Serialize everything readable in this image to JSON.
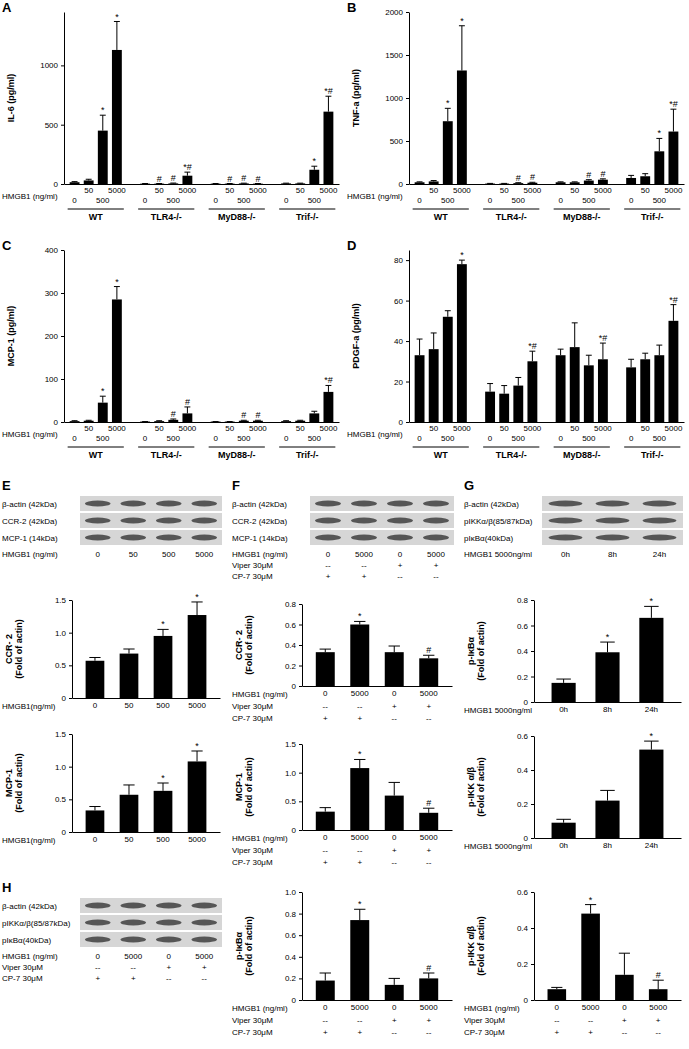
{
  "chart_data": [
    {
      "type": "bar",
      "panel": "A",
      "y_label": [
        "IL-6 (pg/ml)"
      ],
      "x_label": "HMGB1 (ng/ml)",
      "categories": [
        "0",
        "50",
        "500",
        "5000",
        "0",
        "50",
        "500",
        "5000",
        "0",
        "50",
        "500",
        "5000",
        "0",
        "50",
        "500",
        "5000"
      ],
      "groups": [
        "WT",
        "TLR4-/-",
        "MyD88-/-",
        "Trif-/-"
      ],
      "values": [
        15,
        30,
        450,
        1130,
        3,
        3,
        5,
        70,
        3,
        3,
        5,
        3,
        5,
        5,
        120,
        610
      ],
      "errors": [
        5,
        10,
        130,
        240,
        1,
        1,
        3,
        30,
        1,
        1,
        2,
        1,
        2,
        2,
        30,
        130
      ],
      "significance": [
        null,
        null,
        "*",
        "*",
        null,
        "#",
        "#",
        "*#",
        null,
        "#",
        "#",
        "#",
        null,
        null,
        "*",
        "*#"
      ],
      "color": "#000000",
      "ylim": [
        0,
        1450
      ],
      "yticks": [
        0,
        500,
        1000
      ]
    },
    {
      "type": "bar",
      "panel": "B",
      "y_label": [
        "TNF-a (pg/ml)"
      ],
      "x_label": "HMGB1 (ng/ml)",
      "categories": [
        "0",
        "50",
        "500",
        "5000",
        "0",
        "50",
        "500",
        "5000",
        "0",
        "50",
        "500",
        "5000",
        "0",
        "50",
        "500",
        "5000"
      ],
      "groups": [
        "WT",
        "TLR4-/-",
        "MyD88-/-",
        "Trif-/-"
      ],
      "values": [
        20,
        30,
        730,
        1320,
        5,
        5,
        10,
        15,
        20,
        20,
        40,
        50,
        70,
        90,
        380,
        610
      ],
      "errors": [
        5,
        10,
        150,
        520,
        2,
        2,
        5,
        5,
        5,
        5,
        10,
        10,
        30,
        30,
        150,
        260
      ],
      "significance": [
        null,
        null,
        "*",
        "*",
        null,
        null,
        "#",
        "#",
        null,
        null,
        "#",
        "#",
        null,
        null,
        "*",
        "*#"
      ],
      "color": "#000000",
      "ylim": [
        0,
        2000
      ],
      "yticks": [
        0,
        500,
        1000,
        1500,
        2000
      ]
    },
    {
      "type": "bar",
      "panel": "C",
      "y_label": [
        "MCP-1 (pg/ml)"
      ],
      "x_label": "HMGB1 (ng/ml)",
      "categories": [
        "0",
        "50",
        "500",
        "5000",
        "0",
        "50",
        "500",
        "5000",
        "0",
        "50",
        "500",
        "5000",
        "0",
        "50",
        "500",
        "5000"
      ],
      "groups": [
        "WT",
        "TLR4-/-",
        "MyD88-/-",
        "Trif-/-"
      ],
      "values": [
        2,
        3,
        45,
        285,
        1,
        2,
        5,
        20,
        1,
        1,
        3,
        3,
        2,
        3,
        20,
        70
      ],
      "errors": [
        1,
        1,
        15,
        30,
        0,
        1,
        2,
        15,
        0,
        0,
        1,
        1,
        1,
        1,
        5,
        15
      ],
      "significance": [
        null,
        null,
        "*",
        "*",
        null,
        null,
        "#",
        "#",
        null,
        null,
        "#",
        "#",
        null,
        null,
        null,
        "*#"
      ],
      "color": "#000000",
      "ylim": [
        0,
        400
      ],
      "yticks": [
        0,
        100,
        200,
        300,
        400
      ]
    },
    {
      "type": "bar",
      "panel": "D",
      "y_label": [
        "PDGF-a (pg/ml)"
      ],
      "x_label": "HMGB1 (ng/ml)",
      "categories": [
        "0",
        "50",
        "500",
        "5000",
        "0",
        "50",
        "500",
        "5000",
        "0",
        "50",
        "500",
        "5000",
        "0",
        "50",
        "500",
        "5000"
      ],
      "groups": [
        "WT",
        "TLR4-/-",
        "MyD88-/-",
        "Trif-/-"
      ],
      "values": [
        33,
        36,
        52,
        78,
        15,
        14,
        18,
        30,
        33,
        37,
        28,
        31,
        27,
        31,
        33,
        50
      ],
      "errors": [
        8,
        8,
        3,
        2,
        4,
        4,
        4,
        5,
        3,
        12,
        5,
        8,
        4,
        3,
        5,
        8
      ],
      "significance": [
        null,
        null,
        null,
        "*",
        null,
        null,
        null,
        "*#",
        null,
        null,
        null,
        "*#",
        null,
        null,
        null,
        "*#"
      ],
      "color": "#000000",
      "ylim": [
        0,
        85
      ],
      "yticks": [
        0,
        20,
        40,
        60,
        80
      ]
    },
    {
      "type": "blot",
      "panel": "E",
      "rows": [
        "β-actin (42kDa)",
        "CCR-2 (42kDa)",
        "MCP-1 (14kDa)"
      ],
      "lane_rows": [
        {
          "label": "HMGB1 (ng/ml)",
          "values": [
            "0",
            "50",
            "500",
            "5000"
          ]
        }
      ]
    },
    {
      "type": "bar",
      "y_label": [
        "CCR- 2",
        "(Fold of actin)"
      ],
      "x_label": "HMGB1(ng/ml)",
      "categories": [
        "0",
        "50",
        "500",
        "5000"
      ],
      "values": [
        0.57,
        0.68,
        0.95,
        1.27
      ],
      "errors": [
        0.05,
        0.07,
        0.1,
        0.2
      ],
      "significance": [
        null,
        null,
        "*",
        "*"
      ],
      "color": "#000000",
      "ylim": [
        0,
        1.5
      ],
      "yticks": [
        0,
        0.5,
        {
          "value": 1,
          "label": "1.0"
        },
        1.5
      ]
    },
    {
      "type": "bar",
      "y_label": [
        "MCP-1",
        "(Fold of actin)"
      ],
      "x_label": "HMGB1(ng/ml)",
      "categories": [
        "0",
        "50",
        "500",
        "5000"
      ],
      "values": [
        0.33,
        0.57,
        0.63,
        1.08
      ],
      "errors": [
        0.06,
        0.15,
        0.12,
        0.16
      ],
      "significance": [
        null,
        null,
        "*",
        "*"
      ],
      "color": "#000000",
      "ylim": [
        0,
        1.5
      ],
      "yticks": [
        0,
        0.5,
        {
          "value": 1,
          "label": "1.0"
        },
        1.5
      ]
    },
    {
      "type": "blot",
      "panel": "F",
      "rows": [
        "β-actin (42kDa)",
        "CCR-2 (42kDa)",
        "MCP-1 (14kDa)"
      ],
      "lane_rows": [
        {
          "label": "HMGB1 (ng/ml)",
          "values": [
            "0",
            "5000",
            "0",
            "5000"
          ]
        },
        {
          "label": "Viper 30μM",
          "values": [
            "--",
            "--",
            "+",
            "+"
          ]
        },
        {
          "label": "CP-7 30μM",
          "values": [
            "+",
            "+",
            "--",
            "--"
          ]
        }
      ]
    },
    {
      "type": "bar",
      "y_label": [
        "CCR- 2",
        "(Fold of actin)"
      ],
      "x_label": "HMGB1 (ng/ml)",
      "categories": [
        "0",
        "5000",
        "0",
        "5000"
      ],
      "extra_rows": [
        {
          "label": "Viper 30μM",
          "values": [
            "--",
            "--",
            "+",
            "+"
          ]
        },
        {
          "label": "CP-7 30μM",
          "values": [
            "+",
            "+",
            "--",
            "--"
          ]
        }
      ],
      "values": [
        0.33,
        0.6,
        0.33,
        0.27
      ],
      "errors": [
        0.03,
        0.03,
        0.06,
        0.03
      ],
      "significance": [
        null,
        "*",
        null,
        "#"
      ],
      "color": "#000000",
      "ylim": [
        0,
        0.8
      ],
      "yticks": [
        0,
        0.2,
        0.4,
        0.6,
        0.8
      ]
    },
    {
      "type": "bar",
      "y_label": [
        "MCP-1",
        "(Fold of actin)"
      ],
      "x_label": "HMGB1 (ng/ml)",
      "categories": [
        "0",
        "5000",
        "0",
        "5000"
      ],
      "extra_rows": [
        {
          "label": "Viper 30μM",
          "values": [
            "--",
            "--",
            "+",
            "+"
          ]
        },
        {
          "label": "CP-7 30μM",
          "values": [
            "+",
            "+",
            "--",
            "--"
          ]
        }
      ],
      "values": [
        0.32,
        1.08,
        0.6,
        0.3
      ],
      "errors": [
        0.07,
        0.15,
        0.23,
        0.08
      ],
      "significance": [
        null,
        "*",
        null,
        "#"
      ],
      "color": "#000000",
      "ylim": [
        0,
        1.5
      ],
      "yticks": [
        0,
        0.5,
        {
          "value": 1,
          "label": "1.0"
        },
        1.5
      ]
    },
    {
      "type": "blot",
      "panel": "G",
      "rows": [
        "β-actin (42kDa)",
        "pIKKα/β(85/87kDa)",
        "pIκBα(40kDa)"
      ],
      "lane_rows": [
        {
          "label": "HMGB1 5000ng/ml",
          "values": [
            "0h",
            "8h",
            "24h"
          ]
        }
      ]
    },
    {
      "type": "bar",
      "y_label": [
        "p-IκBα",
        "(Fold of actin)"
      ],
      "x_label": "HMGB1 5000ng/ml",
      "categories": [
        "0h",
        "8h",
        "24h"
      ],
      "values": [
        0.15,
        0.39,
        0.66
      ],
      "errors": [
        0.03,
        0.08,
        0.09
      ],
      "significance": [
        null,
        "*",
        "*"
      ],
      "color": "#000000",
      "ylim": [
        0,
        0.8
      ],
      "yticks": [
        0,
        0.2,
        0.4,
        0.6,
        0.8
      ]
    },
    {
      "type": "bar",
      "y_label": [
        "p-IKK α/β",
        "(Fold of actin)"
      ],
      "x_label": "HMGB1 5000ng/ml",
      "categories": [
        "0h",
        "8h",
        "24h"
      ],
      "values": [
        0.09,
        0.22,
        0.52
      ],
      "errors": [
        0.02,
        0.06,
        0.05
      ],
      "significance": [
        null,
        null,
        "*"
      ],
      "color": "#000000",
      "ylim": [
        0,
        0.6
      ],
      "yticks": [
        0,
        0.2,
        0.4,
        0.6
      ]
    },
    {
      "type": "blot",
      "panel": "H",
      "rows": [
        "β-actin (42kDa)",
        "pIKKα/β(85/87kDa)",
        "pIκBα(40kDa)"
      ],
      "lane_rows": [
        {
          "label": "HMGB1 (ng/ml)",
          "values": [
            "0",
            "5000",
            "0",
            "5000"
          ]
        },
        {
          "label": "Viper 30μM",
          "values": [
            "--",
            "--",
            "+",
            "+"
          ]
        },
        {
          "label": "CP-7 30μM",
          "values": [
            "+",
            "+",
            "--",
            "--"
          ]
        }
      ]
    },
    {
      "type": "bar",
      "y_label": [
        "p-IκBα",
        "(Fold of actin)"
      ],
      "x_label": "HMGB1 (ng/ml)",
      "categories": [
        "0",
        "5000",
        "0",
        "5000"
      ],
      "extra_rows": [
        {
          "label": "Viper 30μM",
          "values": [
            "--",
            "--",
            "+",
            "+"
          ]
        },
        {
          "label": "CP-7 30μM",
          "values": [
            "+",
            "+",
            "--",
            "--"
          ]
        }
      ],
      "values": [
        0.18,
        0.74,
        0.14,
        0.2
      ],
      "errors": [
        0.07,
        0.1,
        0.06,
        0.05
      ],
      "significance": [
        null,
        "*",
        null,
        "#"
      ],
      "color": "#000000",
      "ylim": [
        0,
        1
      ],
      "yticks": [
        0,
        0.2,
        0.4,
        0.6,
        0.8,
        {
          "value": 1,
          "label": "1.0"
        }
      ]
    },
    {
      "type": "bar",
      "y_label": [
        "p-IKK α/β",
        "(Fold of actin)"
      ],
      "x_label": "HMGB1 (ng/ml)",
      "categories": [
        "0",
        "5000",
        "0",
        "5000"
      ],
      "extra_rows": [
        {
          "label": "Viper 30μM",
          "values": [
            "--",
            "--",
            "+",
            "+"
          ]
        },
        {
          "label": "CP-7 30μM",
          "values": [
            "+",
            "+",
            "--",
            "--"
          ]
        }
      ],
      "values": [
        0.06,
        0.48,
        0.14,
        0.06
      ],
      "errors": [
        0.01,
        0.05,
        0.12,
        0.05
      ],
      "significance": [
        null,
        "*",
        null,
        "#"
      ],
      "color": "#000000",
      "ylim": [
        0,
        0.6
      ],
      "yticks": [
        0,
        0.2,
        0.4,
        0.6
      ]
    }
  ]
}
